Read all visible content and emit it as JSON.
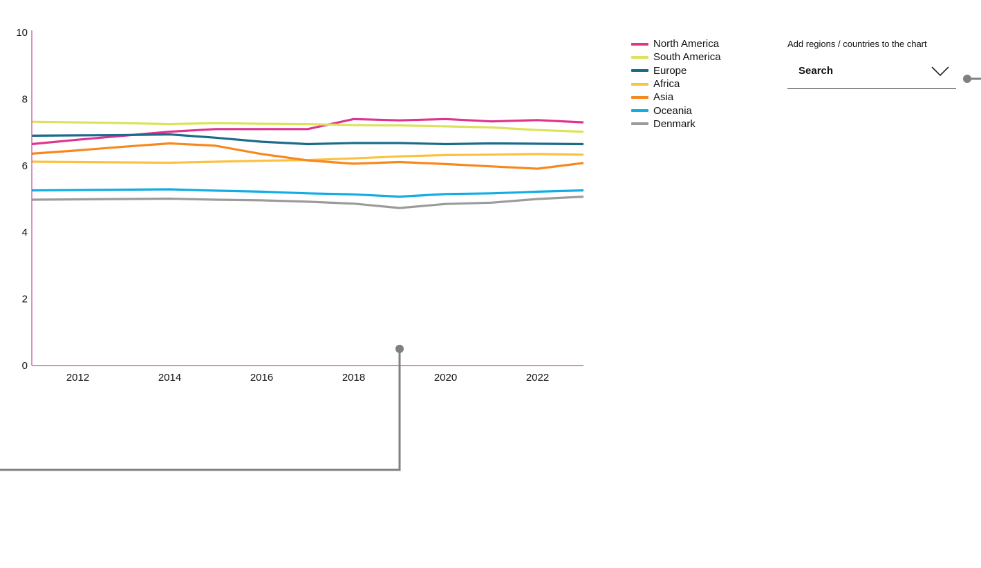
{
  "chart_data": {
    "type": "line",
    "title": "",
    "xlabel": "",
    "ylabel": "",
    "x": [
      2011,
      2012,
      2013,
      2014,
      2015,
      2016,
      2017,
      2018,
      2019,
      2020,
      2021,
      2022,
      2023
    ],
    "xlim": [
      2011,
      2023
    ],
    "ylim": [
      0,
      10
    ],
    "x_ticks": [
      "2012",
      "2014",
      "2016",
      "2018",
      "2020",
      "2022"
    ],
    "y_ticks": [
      "0",
      "2",
      "4",
      "6",
      "8",
      "10"
    ],
    "grid": false,
    "legend_position": "right",
    "axis_color": "#c2489a",
    "series": [
      {
        "name": "North America",
        "color": "#e0338f",
        "values": [
          6.65,
          6.78,
          6.9,
          7.02,
          7.1,
          7.1,
          7.1,
          7.4,
          7.36,
          7.4,
          7.33,
          7.37,
          7.3
        ]
      },
      {
        "name": "South America",
        "color": "#dce25b",
        "values": [
          7.32,
          7.3,
          7.28,
          7.25,
          7.28,
          7.26,
          7.25,
          7.22,
          7.21,
          7.18,
          7.15,
          7.07,
          7.02
        ]
      },
      {
        "name": "Europe",
        "color": "#1a6b8c",
        "values": [
          6.9,
          6.91,
          6.92,
          6.94,
          6.84,
          6.72,
          6.65,
          6.68,
          6.68,
          6.65,
          6.67,
          6.66,
          6.65
        ]
      },
      {
        "name": "Africa",
        "color": "#fbc241",
        "values": [
          6.12,
          6.11,
          6.1,
          6.09,
          6.12,
          6.15,
          6.17,
          6.22,
          6.28,
          6.32,
          6.33,
          6.35,
          6.33
        ]
      },
      {
        "name": "Asia",
        "color": "#f7881e",
        "values": [
          6.36,
          6.46,
          6.57,
          6.67,
          6.6,
          6.35,
          6.16,
          6.06,
          6.11,
          6.05,
          5.98,
          5.91,
          6.08
        ]
      },
      {
        "name": "Oceania",
        "color": "#13ace3",
        "values": [
          5.26,
          5.27,
          5.28,
          5.29,
          5.25,
          5.22,
          5.17,
          5.14,
          5.07,
          5.15,
          5.17,
          5.22,
          5.26
        ]
      },
      {
        "name": "Denmark",
        "color": "#9b9b9b",
        "values": [
          4.98,
          4.99,
          5.0,
          5.01,
          4.98,
          4.96,
          4.92,
          4.86,
          4.73,
          4.85,
          4.89,
          5.0,
          5.07
        ]
      }
    ]
  },
  "controls": {
    "add_label": "Add regions / countries to the chart",
    "search_placeholder": "Search"
  },
  "annotation": {
    "x": 2019,
    "y": 0.5,
    "color": "#808080"
  }
}
